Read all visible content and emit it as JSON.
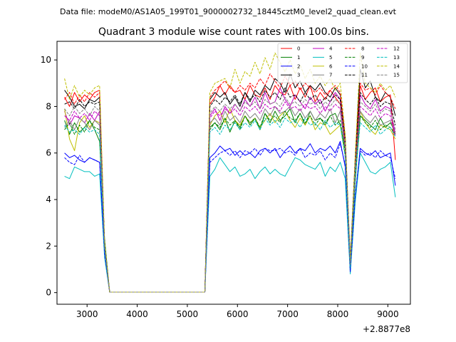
{
  "figure": {
    "data_file_label": "Data file: modeM0/AS1A05_199T01_9000002732_18445cztM0_level2_quad_clean.evt"
  },
  "chart_data": {
    "type": "line",
    "title": "Quadrant 3 module wise count rates with 100.0s bins.",
    "xlabel": "",
    "ylabel": "",
    "x_offset_label": "+2.8877e8",
    "x_offset": 288770000,
    "xlim": [
      2400,
      9450
    ],
    "ylim": [
      -0.5,
      10.8
    ],
    "x_ticks": [
      3000,
      4000,
      5000,
      6000,
      7000,
      8000,
      9000
    ],
    "y_ticks": [
      0,
      2,
      4,
      6,
      8,
      10
    ],
    "grid": false,
    "legend_position": "top-right",
    "x": [
      2550,
      2650,
      2750,
      2850,
      2950,
      3050,
      3150,
      3250,
      3350,
      3450,
      3550,
      3650,
      3750,
      3850,
      3950,
      4050,
      4150,
      4250,
      4350,
      4450,
      4550,
      4650,
      4750,
      4850,
      4950,
      5050,
      5150,
      5250,
      5350,
      5450,
      5550,
      5650,
      5750,
      5850,
      5950,
      6050,
      6150,
      6250,
      6350,
      6450,
      6550,
      6650,
      6750,
      6850,
      6950,
      7050,
      7150,
      7250,
      7350,
      7450,
      7550,
      7650,
      7750,
      7850,
      7950,
      8050,
      8150,
      8250,
      8350,
      8450,
      8550,
      8650,
      8750,
      8850,
      8950,
      9050,
      9150
    ],
    "series": [
      {
        "name": "0",
        "color": "#ff0000",
        "dash": "solid",
        "values": [
          8.4,
          8.0,
          8.6,
          8.2,
          8.5,
          8.3,
          8.6,
          8.7,
          2.0,
          0.02,
          0.02,
          0.02,
          0.02,
          0.02,
          0.02,
          0.02,
          0.02,
          0.02,
          0.02,
          0.02,
          0.02,
          0.02,
          0.02,
          0.02,
          0.02,
          0.02,
          0.02,
          0.02,
          0.02,
          8.1,
          8.4,
          8.9,
          8.5,
          8.9,
          8.6,
          8.7,
          8.3,
          8.9,
          8.5,
          8.4,
          8.8,
          8.3,
          8.9,
          8.6,
          8.5,
          8.9,
          8.3,
          8.8,
          8.4,
          8.9,
          8.2,
          8.6,
          8.3,
          8.7,
          8.4,
          8.1,
          6.4,
          1.2,
          5.6,
          8.9,
          8.3,
          8.6,
          8.8,
          8.2,
          8.4,
          8.5,
          5.7
        ]
      },
      {
        "name": "1",
        "color": "#008000",
        "dash": "solid",
        "values": [
          7.4,
          6.8,
          7.3,
          6.9,
          7.1,
          7.4,
          7.0,
          6.5,
          2.3,
          0.02,
          0.02,
          0.02,
          0.02,
          0.02,
          0.02,
          0.02,
          0.02,
          0.02,
          0.02,
          0.02,
          0.02,
          0.02,
          0.02,
          0.02,
          0.02,
          0.02,
          0.02,
          0.02,
          0.02,
          7.1,
          7.3,
          7.0,
          7.5,
          6.9,
          7.4,
          7.1,
          7.6,
          7.2,
          7.5,
          7.0,
          7.7,
          7.3,
          7.8,
          7.4,
          7.6,
          7.9,
          7.3,
          7.7,
          7.2,
          7.8,
          7.4,
          7.5,
          7.2,
          7.6,
          7.7,
          7.2,
          6.2,
          1.1,
          4.8,
          7.6,
          7.4,
          7.2,
          7.0,
          7.5,
          7.1,
          7.3,
          6.9
        ]
      },
      {
        "name": "2",
        "color": "#0000ff",
        "dash": "solid",
        "values": [
          6.0,
          5.8,
          5.9,
          5.7,
          5.6,
          5.8,
          5.7,
          5.6,
          1.8,
          0.02,
          0.02,
          0.02,
          0.02,
          0.02,
          0.02,
          0.02,
          0.02,
          0.02,
          0.02,
          0.02,
          0.02,
          0.02,
          0.02,
          0.02,
          0.02,
          0.02,
          0.02,
          0.02,
          0.02,
          5.8,
          6.0,
          6.3,
          6.1,
          6.2,
          5.9,
          6.1,
          5.9,
          6.0,
          5.8,
          6.1,
          6.2,
          6.0,
          6.2,
          5.8,
          6.1,
          6.3,
          6.0,
          6.2,
          6.1,
          6.4,
          6.0,
          6.2,
          6.1,
          6.3,
          6.0,
          6.5,
          5.4,
          0.9,
          4.1,
          6.2,
          6.0,
          5.9,
          6.1,
          5.8,
          5.9,
          6.0,
          4.6
        ]
      },
      {
        "name": "3",
        "color": "#000000",
        "dash": "solid",
        "values": [
          8.7,
          8.4,
          8.0,
          8.1,
          7.9,
          8.3,
          8.2,
          8.4,
          2.0,
          0.02,
          0.02,
          0.02,
          0.02,
          0.02,
          0.02,
          0.02,
          0.02,
          0.02,
          0.02,
          0.02,
          0.02,
          0.02,
          0.02,
          0.02,
          0.02,
          0.02,
          0.02,
          0.02,
          0.02,
          8.3,
          8.6,
          8.4,
          8.6,
          8.1,
          8.4,
          8.0,
          8.6,
          8.2,
          8.7,
          8.5,
          8.9,
          8.7,
          9.2,
          9.0,
          8.6,
          9.4,
          8.8,
          9.1,
          8.6,
          8.9,
          8.7,
          9.0,
          8.6,
          8.4,
          8.8,
          8.5,
          6.7,
          1.4,
          5.8,
          9.6,
          8.8,
          9.1,
          8.4,
          8.2,
          8.6,
          8.4,
          7.6
        ]
      },
      {
        "name": "4",
        "color": "#c000c0",
        "dash": "solid",
        "values": [
          7.8,
          7.2,
          7.6,
          7.5,
          7.3,
          7.7,
          7.4,
          7.8,
          2.1,
          0.02,
          0.02,
          0.02,
          0.02,
          0.02,
          0.02,
          0.02,
          0.02,
          0.02,
          0.02,
          0.02,
          0.02,
          0.02,
          0.02,
          0.02,
          0.02,
          0.02,
          0.02,
          0.02,
          0.02,
          7.6,
          7.9,
          7.4,
          8.0,
          7.7,
          8.1,
          7.8,
          8.3,
          8.0,
          8.4,
          7.9,
          8.6,
          8.1,
          8.2,
          8.8,
          8.3,
          8.0,
          8.5,
          8.2,
          7.9,
          8.4,
          8.1,
          8.3,
          7.8,
          8.2,
          8.6,
          8.3,
          6.4,
          1.3,
          5.4,
          8.5,
          8.1,
          7.9,
          8.3,
          7.8,
          8.0,
          7.9,
          6.8
        ]
      },
      {
        "name": "5",
        "color": "#00bfbf",
        "dash": "solid",
        "values": [
          5.0,
          4.9,
          5.4,
          5.3,
          5.2,
          5.2,
          5.0,
          5.1,
          1.5,
          0.02,
          0.02,
          0.02,
          0.02,
          0.02,
          0.02,
          0.02,
          0.02,
          0.02,
          0.02,
          0.02,
          0.02,
          0.02,
          0.02,
          0.02,
          0.02,
          0.02,
          0.02,
          0.02,
          0.02,
          5.0,
          5.3,
          5.8,
          5.5,
          5.2,
          5.4,
          5.0,
          5.1,
          5.3,
          4.9,
          5.2,
          5.4,
          5.1,
          5.3,
          5.1,
          5.0,
          5.4,
          5.8,
          5.7,
          5.5,
          5.4,
          5.3,
          5.6,
          5.0,
          5.4,
          5.2,
          5.6,
          4.9,
          0.8,
          3.9,
          6.0,
          5.6,
          5.2,
          5.1,
          5.3,
          5.4,
          5.6,
          4.1
        ]
      },
      {
        "name": "6",
        "color": "#bfbf00",
        "dash": "solid",
        "values": [
          7.9,
          6.6,
          6.1,
          7.3,
          7.6,
          7.1,
          7.4,
          7.3,
          2.0,
          0.02,
          0.02,
          0.02,
          0.02,
          0.02,
          0.02,
          0.02,
          0.02,
          0.02,
          0.02,
          0.02,
          0.02,
          0.02,
          0.02,
          0.02,
          0.02,
          0.02,
          0.02,
          0.02,
          0.02,
          7.2,
          7.6,
          7.8,
          7.3,
          7.9,
          7.4,
          7.2,
          7.6,
          7.3,
          7.5,
          7.1,
          7.4,
          7.7,
          7.3,
          7.6,
          7.8,
          7.4,
          7.1,
          7.5,
          7.2,
          7.6,
          7.0,
          7.3,
          7.2,
          6.8,
          7.0,
          7.2,
          5.9,
          1.1,
          5.3,
          7.8,
          7.3,
          7.0,
          6.8,
          7.2,
          7.1,
          7.0,
          6.6
        ]
      },
      {
        "name": "7",
        "color": "#808080",
        "dash": "solid",
        "values": [
          7.1,
          7.4,
          7.0,
          7.5,
          7.3,
          7.0,
          7.4,
          7.2,
          2.0,
          0.02,
          0.02,
          0.02,
          0.02,
          0.02,
          0.02,
          0.02,
          0.02,
          0.02,
          0.02,
          0.02,
          0.02,
          0.02,
          0.02,
          0.02,
          0.02,
          0.02,
          0.02,
          0.02,
          0.02,
          7.3,
          7.5,
          7.2,
          7.8,
          7.4,
          7.6,
          7.3,
          7.8,
          7.5,
          7.7,
          7.4,
          7.9,
          7.6,
          8.0,
          7.7,
          7.8,
          8.0,
          7.6,
          7.9,
          7.5,
          7.8,
          7.4,
          7.7,
          7.5,
          7.9,
          7.3,
          7.8,
          6.2,
          1.2,
          5.2,
          7.8,
          7.5,
          7.3,
          7.6,
          7.2,
          7.3,
          7.4,
          6.8
        ]
      },
      {
        "name": "8",
        "color": "#ff0000",
        "dash": "dashed",
        "values": [
          8.3,
          8.6,
          8.1,
          8.5,
          8.2,
          8.6,
          8.4,
          8.6,
          2.0,
          0.02,
          0.02,
          0.02,
          0.02,
          0.02,
          0.02,
          0.02,
          0.02,
          0.02,
          0.02,
          0.02,
          0.02,
          0.02,
          0.02,
          0.02,
          0.02,
          0.02,
          0.02,
          0.02,
          0.02,
          8.4,
          8.7,
          8.9,
          9.1,
          8.8,
          8.6,
          8.9,
          8.7,
          9.0,
          8.8,
          9.2,
          8.9,
          9.4,
          9.1,
          8.8,
          9.3,
          8.9,
          9.1,
          8.7,
          9.0,
          8.8,
          8.6,
          8.8,
          8.5,
          8.7,
          8.9,
          8.6,
          6.5,
          1.3,
          5.6,
          9.0,
          8.7,
          8.8,
          8.5,
          8.9,
          8.6,
          8.4,
          7.9
        ]
      },
      {
        "name": "9",
        "color": "#008000",
        "dash": "dashed",
        "values": [
          7.0,
          7.3,
          6.8,
          7.2,
          6.9,
          7.4,
          7.1,
          7.0,
          2.1,
          0.02,
          0.02,
          0.02,
          0.02,
          0.02,
          0.02,
          0.02,
          0.02,
          0.02,
          0.02,
          0.02,
          0.02,
          0.02,
          0.02,
          0.02,
          0.02,
          0.02,
          0.02,
          0.02,
          0.02,
          7.0,
          7.3,
          7.1,
          7.5,
          7.2,
          7.4,
          7.0,
          7.6,
          7.3,
          7.5,
          7.1,
          7.7,
          7.4,
          7.6,
          7.3,
          7.8,
          7.5,
          7.4,
          7.7,
          7.3,
          7.6,
          7.2,
          7.5,
          7.3,
          7.6,
          7.2,
          7.4,
          6.0,
          1.2,
          5.1,
          7.6,
          7.3,
          7.1,
          7.4,
          7.0,
          7.2,
          7.1,
          6.8
        ]
      },
      {
        "name": "10",
        "color": "#0000ff",
        "dash": "dashed",
        "values": [
          5.8,
          5.6,
          5.5,
          5.9,
          5.6,
          5.8,
          5.7,
          5.6,
          1.7,
          0.02,
          0.02,
          0.02,
          0.02,
          0.02,
          0.02,
          0.02,
          0.02,
          0.02,
          0.02,
          0.02,
          0.02,
          0.02,
          0.02,
          0.02,
          0.02,
          0.02,
          0.02,
          0.02,
          0.02,
          5.6,
          5.8,
          6.0,
          6.1,
          5.9,
          6.1,
          5.8,
          6.1,
          6.0,
          6.2,
          5.9,
          6.2,
          6.1,
          6.1,
          6.2,
          6.0,
          6.1,
          5.9,
          6.2,
          5.8,
          6.0,
          5.9,
          6.1,
          5.7,
          6.0,
          5.8,
          6.4,
          5.5,
          0.9,
          4.2,
          6.1,
          5.9,
          6.0,
          5.8,
          6.1,
          5.9,
          5.8,
          4.9
        ]
      },
      {
        "name": "11",
        "color": "#000000",
        "dash": "dashed",
        "values": [
          8.1,
          8.2,
          7.9,
          8.3,
          8.0,
          8.2,
          8.1,
          8.2,
          2.1,
          0.02,
          0.02,
          0.02,
          0.02,
          0.02,
          0.02,
          0.02,
          0.02,
          0.02,
          0.02,
          0.02,
          0.02,
          0.02,
          0.02,
          0.02,
          0.02,
          0.02,
          0.02,
          0.02,
          0.02,
          8.0,
          8.3,
          8.1,
          8.4,
          8.2,
          8.5,
          8.1,
          8.6,
          8.3,
          8.5,
          8.2,
          8.7,
          8.4,
          8.6,
          8.3,
          8.8,
          8.4,
          8.5,
          8.2,
          8.6,
          8.3,
          8.5,
          8.1,
          8.4,
          8.2,
          8.5,
          8.3,
          6.3,
          1.3,
          5.5,
          8.6,
          8.3,
          8.1,
          8.4,
          8.0,
          8.2,
          8.1,
          7.2
        ]
      },
      {
        "name": "12",
        "color": "#c000c0",
        "dash": "dashed",
        "values": [
          7.6,
          7.4,
          7.8,
          7.5,
          7.7,
          7.4,
          7.8,
          7.6,
          2.0,
          0.02,
          0.02,
          0.02,
          0.02,
          0.02,
          0.02,
          0.02,
          0.02,
          0.02,
          0.02,
          0.02,
          0.02,
          0.02,
          0.02,
          0.02,
          0.02,
          0.02,
          0.02,
          0.02,
          0.02,
          7.5,
          7.8,
          7.6,
          7.9,
          7.7,
          7.9,
          7.6,
          8.0,
          7.8,
          8.0,
          7.7,
          8.1,
          7.9,
          8.0,
          7.8,
          8.2,
          7.9,
          8.0,
          7.8,
          8.1,
          7.9,
          8.0,
          7.7,
          8.0,
          7.8,
          8.1,
          7.9,
          6.2,
          1.2,
          5.3,
          8.0,
          7.8,
          7.6,
          7.9,
          7.5,
          7.7,
          7.6,
          6.7
        ]
      },
      {
        "name": "13",
        "color": "#00bfbf",
        "dash": "dashed",
        "values": [
          7.2,
          6.9,
          7.0,
          6.8,
          7.1,
          6.9,
          7.0,
          6.8,
          2.0,
          0.02,
          0.02,
          0.02,
          0.02,
          0.02,
          0.02,
          0.02,
          0.02,
          0.02,
          0.02,
          0.02,
          0.02,
          0.02,
          0.02,
          0.02,
          0.02,
          0.02,
          0.02,
          0.02,
          0.02,
          6.9,
          7.1,
          6.8,
          7.2,
          7.0,
          7.3,
          7.0,
          7.3,
          7.1,
          7.4,
          7.0,
          7.5,
          7.2,
          7.4,
          7.1,
          7.5,
          7.3,
          7.4,
          7.1,
          7.5,
          7.2,
          7.3,
          7.0,
          7.4,
          7.1,
          7.3,
          7.2,
          5.8,
          1.1,
          5.0,
          7.3,
          7.1,
          6.9,
          7.2,
          6.8,
          7.0,
          7.1,
          6.7
        ]
      },
      {
        "name": "14",
        "color": "#bfbf00",
        "dash": "dashed",
        "values": [
          9.2,
          8.3,
          8.9,
          8.4,
          8.7,
          8.5,
          8.8,
          8.9,
          2.2,
          0.02,
          0.02,
          0.02,
          0.02,
          0.02,
          0.02,
          0.02,
          0.02,
          0.02,
          0.02,
          0.02,
          0.02,
          0.02,
          0.02,
          0.02,
          0.02,
          0.02,
          0.02,
          0.02,
          0.02,
          8.6,
          9.0,
          9.1,
          9.2,
          8.8,
          9.6,
          9.0,
          9.5,
          9.3,
          9.9,
          9.4,
          10.1,
          9.6,
          10.3,
          9.9,
          9.5,
          10.0,
          9.4,
          9.8,
          9.2,
          9.6,
          9.0,
          9.3,
          8.9,
          9.2,
          8.7,
          9.0,
          6.8,
          1.4,
          5.9,
          10.3,
          9.0,
          8.8,
          8.6,
          9.0,
          8.7,
          8.9,
          8.4
        ]
      },
      {
        "name": "15",
        "color": "#808080",
        "dash": "dashed",
        "values": [
          7.9,
          7.6,
          8.0,
          7.7,
          7.9,
          7.6,
          8.0,
          7.8,
          2.0,
          0.02,
          0.02,
          0.02,
          0.02,
          0.02,
          0.02,
          0.02,
          0.02,
          0.02,
          0.02,
          0.02,
          0.02,
          0.02,
          0.02,
          0.02,
          0.02,
          0.02,
          0.02,
          0.02,
          0.02,
          7.7,
          8.0,
          7.8,
          8.1,
          7.9,
          8.1,
          7.8,
          8.2,
          8.0,
          8.2,
          7.9,
          8.3,
          8.1,
          8.2,
          8.0,
          8.4,
          8.1,
          8.2,
          8.0,
          8.3,
          8.1,
          8.2,
          7.9,
          8.2,
          8.0,
          8.3,
          8.1,
          6.3,
          1.2,
          5.4,
          8.2,
          8.0,
          7.8,
          8.1,
          7.7,
          7.9,
          7.8,
          7.0
        ]
      }
    ]
  }
}
